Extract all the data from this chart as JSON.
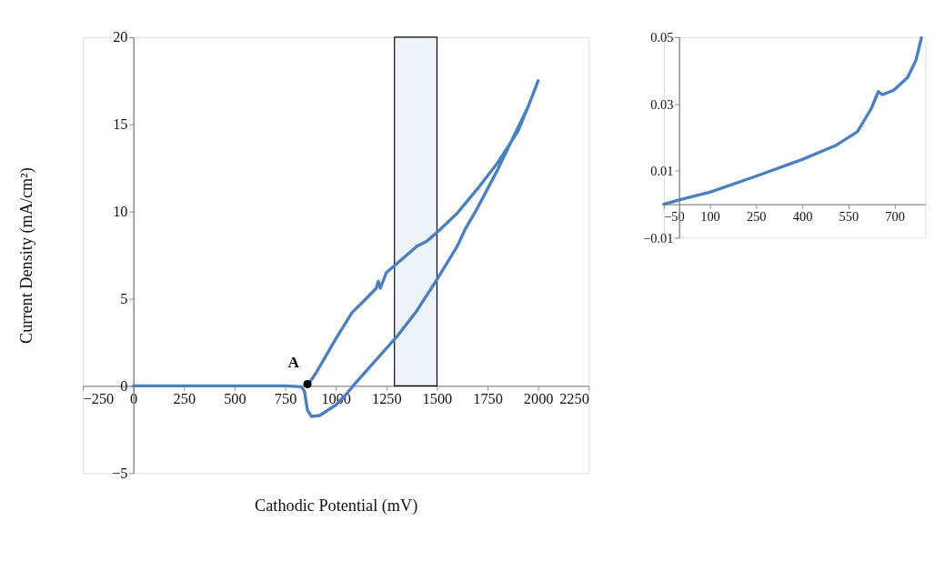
{
  "chart_data": [
    {
      "type": "line",
      "xlabel": "Cathodic Potential (mV)",
      "ylabel": "Current Density (mA/cm²)",
      "xlim": [
        -250,
        2250
      ],
      "xticks": [
        -250,
        0,
        250,
        500,
        750,
        1000,
        1250,
        1500,
        1750,
        2000,
        2250
      ],
      "ylim": [
        -5,
        20
      ],
      "yticks": [
        -5,
        0,
        5,
        10,
        15,
        20
      ],
      "grid": false,
      "marker": "none",
      "line_style": "solid",
      "series": [
        {
          "color": "#4a7fc1",
          "x": [
            0,
            250,
            500,
            750,
            830,
            845,
            860,
            880,
            920,
            1000,
            1050,
            1100,
            1200,
            1300,
            1400,
            1500,
            1600,
            1640,
            1700,
            1800,
            1900,
            1950,
            2000,
            1950,
            1900,
            1800,
            1700,
            1600,
            1500,
            1450,
            1400,
            1300,
            1250,
            1220,
            1210,
            1200,
            1150,
            1080,
            1000,
            950,
            900,
            870,
            860
          ],
          "values": [
            0,
            0,
            0,
            0,
            -0.05,
            -0.3,
            -1.4,
            -1.75,
            -1.7,
            -1.1,
            -0.5,
            0.2,
            1.5,
            2.8,
            4.3,
            6.1,
            8.0,
            9.0,
            10.2,
            12.4,
            14.8,
            16.0,
            17.5,
            16.0,
            14.6,
            12.8,
            11.3,
            9.9,
            8.8,
            8.3,
            8.0,
            7.0,
            6.5,
            5.6,
            6.0,
            5.6,
            5.0,
            4.2,
            2.7,
            1.7,
            0.7,
            0.2,
            0.1
          ]
        },
        {
          "type": "scatter",
          "color": "#000000",
          "x": [
            860
          ],
          "values": [
            0.1
          ],
          "marker": "circle"
        }
      ],
      "bands": [
        {
          "axis": "x",
          "from": 1290,
          "to": 1500,
          "color": "#eef3f9"
        }
      ],
      "annotations": [
        {
          "text": "A",
          "x": 860,
          "y": 0.1
        }
      ]
    },
    {
      "type": "line",
      "xlim": [
        -50,
        800
      ],
      "xticks": [
        -50,
        100,
        250,
        400,
        550,
        700
      ],
      "ylim": [
        -0.01,
        0.05
      ],
      "yticks": [
        -0.01,
        0.01,
        0.03,
        0.05
      ],
      "grid": false,
      "marker": "none",
      "line_style": "solid",
      "series": [
        {
          "color": "#4a7fc1",
          "x": [
            -50,
            0,
            100,
            250,
            400,
            507,
            579,
            624,
            647,
            660,
            697,
            742,
            769,
            787
          ],
          "values": [
            0.0,
            0.0013,
            0.0036,
            0.0084,
            0.0134,
            0.0175,
            0.0217,
            0.0286,
            0.0337,
            0.0328,
            0.0341,
            0.0379,
            0.043,
            0.0498
          ]
        }
      ]
    }
  ]
}
